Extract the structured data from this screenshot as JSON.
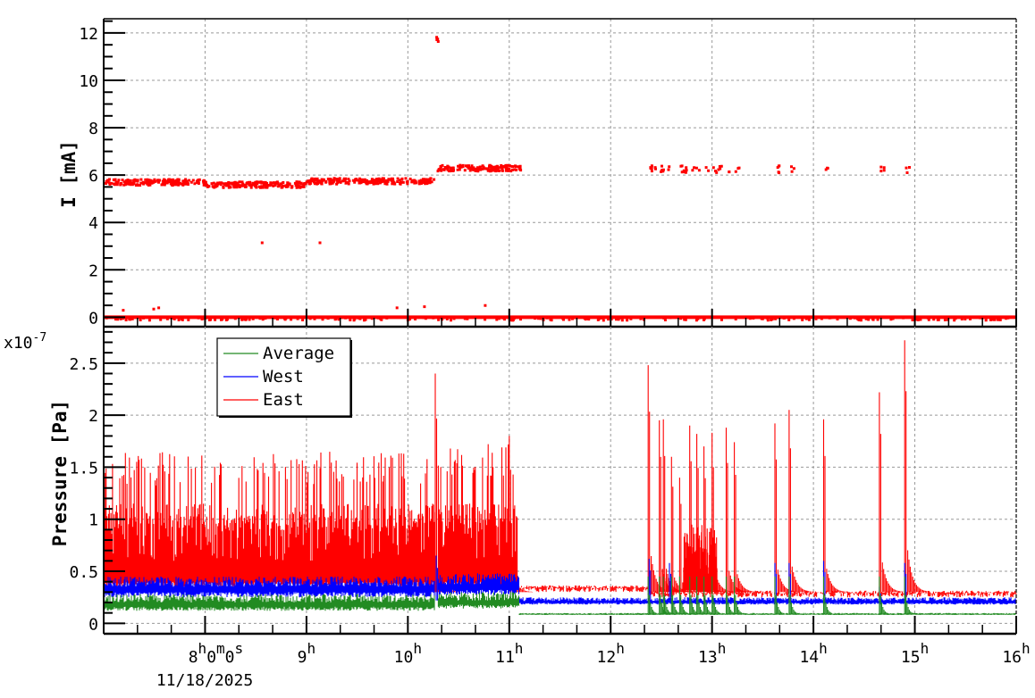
{
  "chart_data": [
    {
      "type": "scatter",
      "panel": "top",
      "title": "",
      "xlabel": "",
      "ylabel": "I [mA]",
      "ylim": [
        -0.4,
        12.6
      ],
      "yticks": [
        0,
        2,
        4,
        6,
        8,
        10,
        12
      ],
      "xlim_hours": [
        7.0,
        16.0
      ],
      "grid": true,
      "series": [
        {
          "name": "Current",
          "color": "#ff0000",
          "segments": [
            {
              "x_range": [
                7.0,
                8.0
              ],
              "y": 5.75,
              "note": "noisy plateau ~5.6-5.9"
            },
            {
              "x_range": [
                8.0,
                9.0
              ],
              "y": 5.65
            },
            {
              "x_range": [
                9.0,
                10.25
              ],
              "y": 5.8
            },
            {
              "x_range": [
                10.27,
                10.29
              ],
              "y": 11.75,
              "note": "outlier points ~11.6-11.9"
            },
            {
              "x_range": [
                10.28,
                11.1
              ],
              "y": 6.35
            },
            {
              "x_range": [
                12.38,
                14.9
              ],
              "y": 6.3,
              "note": "sparse points"
            },
            {
              "x_range": [
                7.0,
                16.0
              ],
              "y": 0.0,
              "note": "dense baseline"
            }
          ],
          "outliers": [
            {
              "x": 8.55,
              "y": 3.2
            },
            {
              "x": 9.12,
              "y": 3.2
            },
            {
              "x": 7.18,
              "y": 0.35
            },
            {
              "x": 7.48,
              "y": 0.4
            },
            {
              "x": 7.53,
              "y": 0.45
            },
            {
              "x": 9.88,
              "y": 0.45
            },
            {
              "x": 10.15,
              "y": 0.5
            },
            {
              "x": 10.75,
              "y": 0.55
            }
          ]
        }
      ]
    },
    {
      "type": "line",
      "panel": "bottom",
      "title": "",
      "xlabel": "",
      "ylabel": "Pressure [Pa]",
      "yscale_label": "x10^-7",
      "ylim": [
        -0.1,
        2.85
      ],
      "yticks": [
        0,
        0.5,
        1,
        1.5,
        2,
        2.5
      ],
      "xlim_hours": [
        7.0,
        16.0
      ],
      "grid": true,
      "legend_position": "upper-left",
      "series": [
        {
          "name": "Average",
          "color": "#228b22",
          "baseline_regions": [
            {
              "x_range": [
                7.0,
                10.27
              ],
              "low": 0.12,
              "high": 0.28
            },
            {
              "x_range": [
                10.3,
                11.1
              ],
              "low": 0.14,
              "high": 0.3
            },
            {
              "x_range": [
                11.1,
                16.0
              ],
              "low": 0.08,
              "high": 0.1
            }
          ]
        },
        {
          "name": "West",
          "color": "#0000ff",
          "baseline_regions": [
            {
              "x_range": [
                7.0,
                10.27
              ],
              "low": 0.25,
              "high": 0.45
            },
            {
              "x_range": [
                10.3,
                11.1
              ],
              "low": 0.27,
              "high": 0.48
            },
            {
              "x_range": [
                11.1,
                16.0
              ],
              "low": 0.18,
              "high": 0.25
            }
          ],
          "peaks": [
            {
              "x": 10.28,
              "y": 0.65
            },
            {
              "x": 12.38,
              "y": 0.62
            },
            {
              "x": 12.58,
              "y": 0.58
            },
            {
              "x": 13.62,
              "y": 0.58
            },
            {
              "x": 13.76,
              "y": 0.58
            },
            {
              "x": 14.1,
              "y": 0.6
            },
            {
              "x": 14.65,
              "y": 0.35
            },
            {
              "x": 14.9,
              "y": 0.58
            }
          ]
        },
        {
          "name": "East",
          "color": "#ff0000",
          "baseline_regions": [
            {
              "x_range": [
                7.0,
                10.27
              ],
              "low": 0.35,
              "high": 1.65
            },
            {
              "x_range": [
                10.3,
                11.08
              ],
              "low": 0.35,
              "high": 1.75
            },
            {
              "x_range": [
                11.1,
                12.37
              ],
              "low": 0.3,
              "high": 0.35
            },
            {
              "x_range": [
                12.37,
                16.0
              ],
              "low": 0.25,
              "high": 0.3
            }
          ],
          "peaks": [
            {
              "x": 10.27,
              "y": 2.4
            },
            {
              "x": 11.0,
              "y": 1.8
            },
            {
              "x": 12.37,
              "y": 2.48
            },
            {
              "x": 12.48,
              "y": 1.95
            },
            {
              "x": 12.52,
              "y": 1.96
            },
            {
              "x": 12.6,
              "y": 1.6
            },
            {
              "x": 12.68,
              "y": 1.4
            },
            {
              "x": 12.78,
              "y": 1.9
            },
            {
              "x": 12.85,
              "y": 1.82
            },
            {
              "x": 12.92,
              "y": 1.7
            },
            {
              "x": 13.0,
              "y": 1.83
            },
            {
              "x": 13.14,
              "y": 1.88
            },
            {
              "x": 13.22,
              "y": 1.74
            },
            {
              "x": 13.62,
              "y": 1.92
            },
            {
              "x": 13.76,
              "y": 2.05
            },
            {
              "x": 14.1,
              "y": 1.96
            },
            {
              "x": 14.65,
              "y": 2.22
            },
            {
              "x": 14.9,
              "y": 2.72
            }
          ]
        }
      ]
    }
  ],
  "axes": {
    "top": {
      "ylabel": "I [mA]",
      "yticks": [
        "0",
        "2",
        "4",
        "6",
        "8",
        "10",
        "12"
      ]
    },
    "bottom": {
      "ylabel": "Pressure [Pa]",
      "exponent_base": "x10",
      "exponent_power": "-7",
      "yticks": [
        "0",
        "0.5",
        "1",
        "1.5",
        "2",
        "2.5"
      ]
    },
    "x": {
      "ticks": [
        {
          "hour": "8",
          "suffix_h": "h",
          "extra": "0",
          "suffix_m": "m",
          "extra2": "0",
          "suffix_s": "s"
        },
        {
          "hour": "9",
          "suffix_h": "h"
        },
        {
          "hour": "10",
          "suffix_h": "h"
        },
        {
          "hour": "11",
          "suffix_h": "h"
        },
        {
          "hour": "12",
          "suffix_h": "h"
        },
        {
          "hour": "13",
          "suffix_h": "h"
        },
        {
          "hour": "14",
          "suffix_h": "h"
        },
        {
          "hour": "15",
          "suffix_h": "h"
        },
        {
          "hour": "16",
          "suffix_h": "h"
        }
      ],
      "date": "11/18/2025"
    }
  },
  "legend": {
    "items": [
      {
        "label": "Average",
        "color": "#228b22"
      },
      {
        "label": "West",
        "color": "#0000ff"
      },
      {
        "label": "East",
        "color": "#ff0000"
      }
    ]
  },
  "colors": {
    "grid": "#999999",
    "axis": "#000000"
  }
}
